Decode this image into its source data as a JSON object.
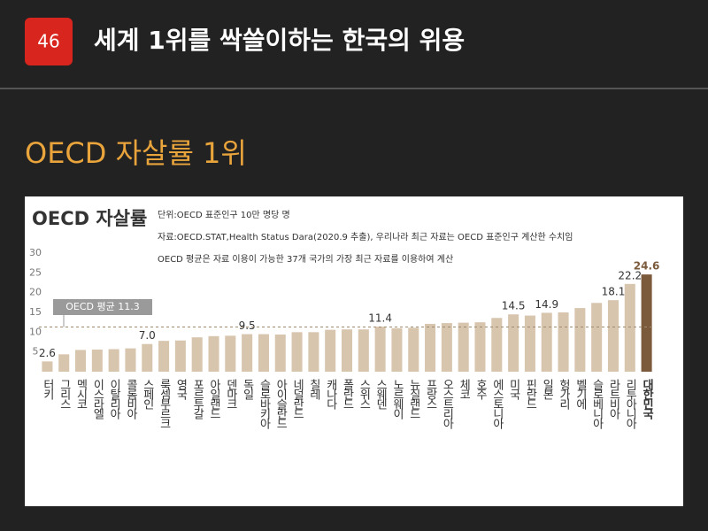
{
  "header": {
    "badge": "46",
    "title": "세계 1위를 싹쓸이하는 한국의 위용"
  },
  "subtitle": "OECD 자살률 1위",
  "chart_data": {
    "type": "bar",
    "title": "OECD 자살률",
    "notes": [
      "단위:OECD 표준인구 10만 명당 명",
      "자료:OECD.STAT,Health Status Dara(2020.9 추출), 우리나라 최근 자료는 OECD 표준인구 계산한 수치임",
      "OECD 평균은 자료 이용이 가능한 37개 국가의 가장 최근 자료를 이용하여 계산"
    ],
    "categories": [
      "터키",
      "그리스",
      "멕시코",
      "이스라엘",
      "이탈리아",
      "콜롬비아",
      "스페인",
      "룩셈부르크",
      "영국",
      "포르투갈",
      "아일랜드",
      "덴마크",
      "독일",
      "슬로바키아",
      "아이슬란드",
      "네덜란드",
      "칠레",
      "캐나다",
      "폴란드",
      "스위스",
      "스웨덴",
      "노르웨이",
      "뉴질랜드",
      "프랑스",
      "오스트리아",
      "체코",
      "호주",
      "에스토니아",
      "미국",
      "핀란드",
      "일본",
      "헝가리",
      "벨기에",
      "슬로베니아",
      "라트비아",
      "리투아니아",
      "대한민국"
    ],
    "values": [
      2.6,
      4.4,
      5.5,
      5.6,
      5.7,
      5.9,
      7.0,
      7.8,
      7.9,
      8.7,
      9.0,
      9.1,
      9.5,
      9.5,
      9.4,
      10.0,
      10.0,
      10.6,
      10.7,
      10.7,
      11.4,
      11.0,
      11.1,
      12.1,
      12.3,
      12.4,
      12.5,
      13.6,
      14.5,
      14.2,
      14.9,
      15.0,
      16.1,
      17.4,
      18.1,
      22.2,
      24.6
    ],
    "value_labels": [
      "2.6",
      null,
      null,
      null,
      null,
      null,
      "7.0",
      null,
      null,
      null,
      null,
      null,
      "9.5",
      null,
      null,
      null,
      null,
      null,
      null,
      null,
      "11.4",
      null,
      null,
      null,
      null,
      null,
      null,
      null,
      "14.5",
      null,
      "14.9",
      null,
      null,
      null,
      "18.1",
      "22.2",
      "24.6"
    ],
    "colors": [
      "#d8c5ae",
      "#d8c5ae",
      "#d8c5ae",
      "#d8c5ae",
      "#d8c5ae",
      "#d8c5ae",
      "#d8c5ae",
      "#d8c5ae",
      "#d8c5ae",
      "#d8c5ae",
      "#d8c5ae",
      "#d8c5ae",
      "#d8c5ae",
      "#d8c5ae",
      "#d8c5ae",
      "#d8c5ae",
      "#d8c5ae",
      "#d8c5ae",
      "#d8c5ae",
      "#d8c5ae",
      "#d8c5ae",
      "#d8c5ae",
      "#d8c5ae",
      "#d8c5ae",
      "#d8c5ae",
      "#d8c5ae",
      "#d8c5ae",
      "#d8c5ae",
      "#d8c5ae",
      "#d8c5ae",
      "#d8c5ae",
      "#d8c5ae",
      "#d8c5ae",
      "#d8c5ae",
      "#d8c5ae",
      "#d8c5ae",
      "#7b5a3b"
    ],
    "ylim": [
      0,
      30
    ],
    "yticks": [
      5,
      10,
      15,
      20,
      25,
      30
    ],
    "grid": false,
    "average": {
      "value": 11.3,
      "label": "OECD 평균 11.3"
    }
  }
}
